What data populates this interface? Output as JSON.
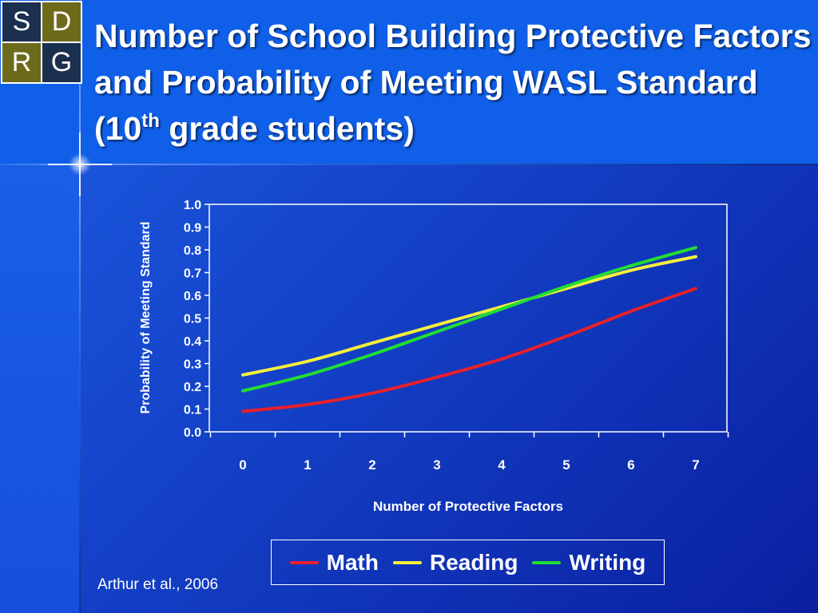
{
  "logo": {
    "letters": [
      "S",
      "D",
      "R",
      "G"
    ]
  },
  "slide": {
    "title_main": "Number of School Building Protective Factors and Probability of Meeting WASL Standard (10",
    "title_sup": "th",
    "title_end": " grade students)",
    "citation": "Arthur et al., 2006"
  },
  "colors": {
    "math": "#e8202a",
    "reading": "#f5ef3c",
    "writing": "#22dd33",
    "text": "#ffffff"
  },
  "chart_data": {
    "type": "line",
    "title": "",
    "xlabel": "Number of Protective Factors",
    "ylabel": "Probability of Meeting Standard",
    "x": [
      0,
      1,
      2,
      3,
      4,
      5,
      6,
      7
    ],
    "x_tick_labels": [
      "0",
      "1",
      "2",
      "3",
      "4",
      "5",
      "6",
      "7"
    ],
    "y_tick_labels": [
      "0.0",
      "0.1",
      "0.2",
      "0.3",
      "0.4",
      "0.5",
      "0.6",
      "0.7",
      "0.8",
      "0.9",
      "1.0"
    ],
    "ylim": [
      0,
      1
    ],
    "grid": false,
    "legend_position": "bottom",
    "series": [
      {
        "name": "Math",
        "color": "#e8202a",
        "values": [
          0.09,
          0.12,
          0.17,
          0.24,
          0.32,
          0.42,
          0.53,
          0.63
        ]
      },
      {
        "name": "Reading",
        "color": "#f5ef3c",
        "values": [
          0.25,
          0.31,
          0.39,
          0.47,
          0.55,
          0.63,
          0.71,
          0.77
        ]
      },
      {
        "name": "Writing",
        "color": "#22dd33",
        "values": [
          0.18,
          0.25,
          0.34,
          0.44,
          0.54,
          0.64,
          0.73,
          0.81
        ]
      }
    ]
  }
}
